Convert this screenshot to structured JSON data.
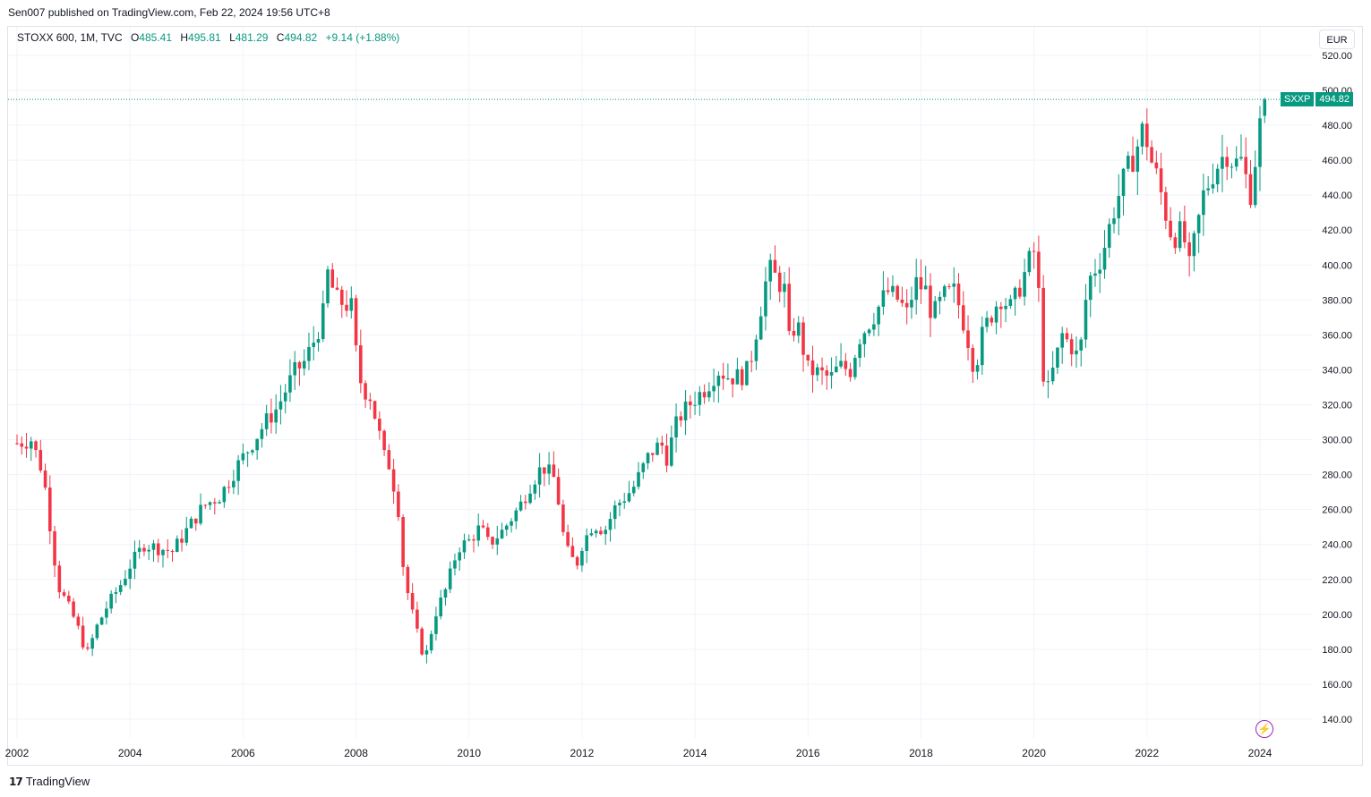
{
  "header": {
    "publish_line": "Sen007 published on TradingView.com, Feb 22, 2024 19:56 UTC+8"
  },
  "legend": {
    "symbol": "STOXX 600, 1M, TVC",
    "o_label": "O",
    "o_value": "485.41",
    "h_label": "H",
    "h_value": "495.81",
    "l_label": "L",
    "l_value": "481.29",
    "c_label": "C",
    "c_value": "494.82",
    "change": "+9.14 (+1.88%)"
  },
  "currency": "EUR",
  "price_label": {
    "symbol": "SXXP",
    "last": "494.82"
  },
  "footer": {
    "brand": "TradingView"
  },
  "colors": {
    "up": "#089981",
    "down": "#f23645",
    "grid": "#f0f3fa",
    "axis_text": "#131722"
  },
  "icons": {
    "bolt": "lightning-bolt-icon",
    "logo": "tradingview-logo-icon"
  },
  "chart_data": {
    "type": "candlestick",
    "title": "STOXX 600, 1M, TVC",
    "interval": "monthly",
    "x_ticks": [
      "2002",
      "2004",
      "2006",
      "2008",
      "2010",
      "2012",
      "2014",
      "2016",
      "2018",
      "2020",
      "2022",
      "2024"
    ],
    "y_ticks": [
      "140.00",
      "160.00",
      "180.00",
      "200.00",
      "220.00",
      "240.00",
      "260.00",
      "280.00",
      "300.00",
      "320.00",
      "340.00",
      "360.00",
      "380.00",
      "400.00",
      "420.00",
      "440.00",
      "460.00",
      "480.00",
      "500.00",
      "520.00"
    ],
    "ylim": [
      127,
      525
    ],
    "last_price": 494.82,
    "anchors": [
      [
        2002.0,
        298
      ],
      [
        2002.25,
        300
      ],
      [
        2002.45,
        282
      ],
      [
        2002.55,
        262
      ],
      [
        2002.62,
        240
      ],
      [
        2002.75,
        215
      ],
      [
        2002.9,
        205
      ],
      [
        2003.05,
        195
      ],
      [
        2003.15,
        185
      ],
      [
        2003.25,
        178
      ],
      [
        2003.4,
        192
      ],
      [
        2003.6,
        205
      ],
      [
        2003.85,
        218
      ],
      [
        2004.0,
        228
      ],
      [
        2004.25,
        240
      ],
      [
        2004.5,
        238
      ],
      [
        2004.75,
        236
      ],
      [
        2005.0,
        248
      ],
      [
        2005.3,
        262
      ],
      [
        2005.6,
        268
      ],
      [
        2005.9,
        285
      ],
      [
        2006.2,
        300
      ],
      [
        2006.4,
        310
      ],
      [
        2006.6,
        318
      ],
      [
        2006.9,
        338
      ],
      [
        2007.1,
        345
      ],
      [
        2007.3,
        360
      ],
      [
        2007.45,
        375
      ],
      [
        2007.5,
        395
      ],
      [
        2007.65,
        380
      ],
      [
        2007.8,
        378
      ],
      [
        2007.95,
        375
      ],
      [
        2008.0,
        350
      ],
      [
        2008.1,
        330
      ],
      [
        2008.25,
        325
      ],
      [
        2008.4,
        305
      ],
      [
        2008.5,
        290
      ],
      [
        2008.6,
        285
      ],
      [
        2008.75,
        260
      ],
      [
        2008.85,
        222
      ],
      [
        2009.0,
        200
      ],
      [
        2009.15,
        180
      ],
      [
        2009.25,
        178
      ],
      [
        2009.4,
        200
      ],
      [
        2009.6,
        215
      ],
      [
        2009.8,
        238
      ],
      [
        2010.0,
        242
      ],
      [
        2010.2,
        250
      ],
      [
        2010.35,
        240
      ],
      [
        2010.6,
        248
      ],
      [
        2010.9,
        262
      ],
      [
        2011.1,
        275
      ],
      [
        2011.3,
        285
      ],
      [
        2011.5,
        278
      ],
      [
        2011.6,
        262
      ],
      [
        2011.7,
        238
      ],
      [
        2011.9,
        228
      ],
      [
        2012.0,
        240
      ],
      [
        2012.2,
        252
      ],
      [
        2012.4,
        248
      ],
      [
        2012.6,
        262
      ],
      [
        2012.9,
        272
      ],
      [
        2013.2,
        292
      ],
      [
        2013.4,
        298
      ],
      [
        2013.5,
        290
      ],
      [
        2013.7,
        312
      ],
      [
        2013.95,
        322
      ],
      [
        2014.2,
        330
      ],
      [
        2014.4,
        340
      ],
      [
        2014.6,
        336
      ],
      [
        2014.8,
        336
      ],
      [
        2014.95,
        340
      ],
      [
        2015.1,
        365
      ],
      [
        2015.3,
        398
      ],
      [
        2015.45,
        392
      ],
      [
        2015.6,
        385
      ],
      [
        2015.65,
        355
      ],
      [
        2015.8,
        368
      ],
      [
        2016.0,
        340
      ],
      [
        2016.2,
        338
      ],
      [
        2016.4,
        335
      ],
      [
        2016.55,
        342
      ],
      [
        2016.75,
        340
      ],
      [
        2016.9,
        358
      ],
      [
        2017.2,
        373
      ],
      [
        2017.4,
        385
      ],
      [
        2017.6,
        380
      ],
      [
        2017.75,
        372
      ],
      [
        2017.9,
        390
      ],
      [
        2018.1,
        385
      ],
      [
        2018.2,
        370
      ],
      [
        2018.4,
        382
      ],
      [
        2018.6,
        385
      ],
      [
        2018.8,
        362
      ],
      [
        2018.95,
        340
      ],
      [
        2019.1,
        362
      ],
      [
        2019.4,
        382
      ],
      [
        2019.6,
        375
      ],
      [
        2019.8,
        392
      ],
      [
        2019.95,
        405
      ],
      [
        2020.05,
        410
      ],
      [
        2020.1,
        370
      ],
      [
        2020.2,
        322
      ],
      [
        2020.3,
        335
      ],
      [
        2020.5,
        360
      ],
      [
        2020.7,
        352
      ],
      [
        2020.8,
        345
      ],
      [
        2020.95,
        390
      ],
      [
        2021.2,
        405
      ],
      [
        2021.4,
        430
      ],
      [
        2021.6,
        450
      ],
      [
        2021.8,
        465
      ],
      [
        2021.95,
        480
      ],
      [
        2022.05,
        462
      ],
      [
        2022.2,
        448
      ],
      [
        2022.4,
        420
      ],
      [
        2022.55,
        415
      ],
      [
        2022.65,
        425
      ],
      [
        2022.7,
        390
      ],
      [
        2022.85,
        415
      ],
      [
        2023.0,
        440
      ],
      [
        2023.2,
        455
      ],
      [
        2023.4,
        465
      ],
      [
        2023.55,
        458
      ],
      [
        2023.7,
        460
      ],
      [
        2023.75,
        450
      ],
      [
        2023.85,
        440
      ],
      [
        2023.95,
        470
      ],
      [
        2024.0,
        480
      ],
      [
        2024.1,
        494.82
      ]
    ]
  }
}
